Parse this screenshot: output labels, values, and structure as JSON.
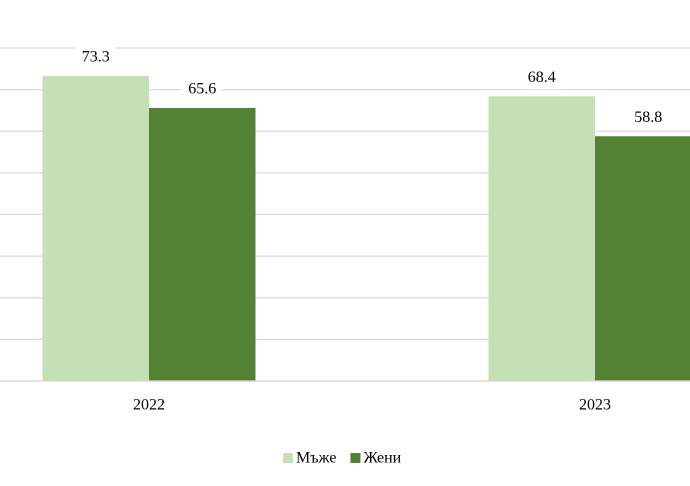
{
  "chart_data": {
    "type": "bar",
    "categories": [
      "2022",
      "2023"
    ],
    "series": [
      {
        "name": "Мъже",
        "color": "#c5e0b4",
        "values": [
          73.3,
          68.4
        ]
      },
      {
        "name": "Жени",
        "color": "#548235",
        "values": [
          65.6,
          58.8
        ]
      }
    ],
    "ylim": [
      0,
      80
    ],
    "yticks": [
      0,
      10,
      20,
      30,
      40,
      50,
      60,
      70,
      80
    ],
    "grid": true,
    "legend": "bottom"
  }
}
